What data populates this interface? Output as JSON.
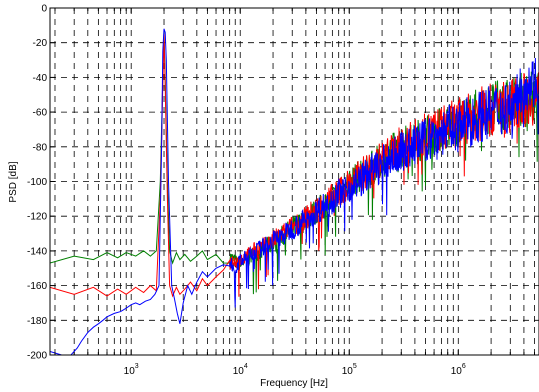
{
  "chart_data": {
    "type": "line",
    "title": "",
    "xlabel": "Frequency [Hz]",
    "ylabel": "PSD [dB]",
    "xscale": "log",
    "xlim": [
      180,
      5500000
    ],
    "ylim": [
      -200,
      0
    ],
    "grid": true,
    "grid_style": "dashed",
    "legend": "none",
    "x_ticks": [
      {
        "value": 1000,
        "mantissa": "10",
        "exp": "3"
      },
      {
        "value": 10000,
        "mantissa": "10",
        "exp": "4"
      },
      {
        "value": 100000,
        "mantissa": "10",
        "exp": "5"
      },
      {
        "value": 1000000,
        "mantissa": "10",
        "exp": "6"
      }
    ],
    "y_ticks": [
      {
        "value": 0,
        "label": "0"
      },
      {
        "value": -20,
        "label": "-20"
      },
      {
        "value": -40,
        "label": "-40"
      },
      {
        "value": -60,
        "label": "-60"
      },
      {
        "value": -80,
        "label": "-80"
      },
      {
        "value": -100,
        "label": "-100"
      },
      {
        "value": -120,
        "label": "-120"
      },
      {
        "value": -140,
        "label": "-140"
      },
      {
        "value": -160,
        "label": "-160"
      },
      {
        "value": -180,
        "label": "-180"
      },
      {
        "value": -200,
        "label": "-200"
      }
    ],
    "series": [
      {
        "color": "#008000",
        "x": [
          180,
          300,
          450,
          600,
          750,
          900,
          1100,
          1300,
          1500,
          1700,
          1850,
          1950,
          2000,
          2050,
          2150,
          2250,
          2400,
          2600,
          2800,
          3100,
          3500,
          4000,
          4500,
          5000,
          6000,
          7000,
          8000,
          9000,
          10000,
          12000,
          14000,
          17000,
          20000,
          25000,
          30000,
          40000,
          50000,
          65000,
          80000,
          100000,
          130000,
          160000,
          200000,
          250000,
          300000,
          400000,
          500000,
          650000,
          800000,
          1000000,
          1300000,
          1600000,
          2000000,
          2500000,
          3000000,
          3500000,
          4000000,
          4500000,
          5000000,
          5500000
        ],
        "y": [
          -147,
          -143,
          -145,
          -141,
          -144,
          -141,
          -143,
          -140,
          -143,
          -140,
          -100,
          -40,
          -14,
          -40,
          -100,
          -140,
          -147,
          -141,
          -145,
          -142,
          -146,
          -143,
          -140,
          -145,
          -142,
          -147,
          -143,
          -146,
          -148,
          -144,
          -141,
          -138,
          -136,
          -131,
          -127,
          -122,
          -117,
          -112,
          -107,
          -101,
          -96,
          -92,
          -88,
          -83,
          -80,
          -77,
          -74,
          -71,
          -68,
          -66,
          -63,
          -60,
          -58,
          -57,
          -56,
          -54,
          -53,
          -52,
          -52,
          -51
        ]
      },
      {
        "color": "#ff0000",
        "x": [
          180,
          300,
          450,
          600,
          750,
          900,
          1100,
          1300,
          1500,
          1700,
          1850,
          1950,
          2000,
          2050,
          2150,
          2250,
          2400,
          2600,
          2800,
          3100,
          3500,
          4000,
          4500,
          5000,
          6000,
          7000,
          8000,
          9000,
          10000,
          12000,
          14000,
          17000,
          20000,
          25000,
          30000,
          40000,
          50000,
          65000,
          80000,
          100000,
          130000,
          160000,
          200000,
          250000,
          300000,
          400000,
          500000,
          650000,
          800000,
          1000000,
          1300000,
          1600000,
          2000000,
          2500000,
          3000000,
          3500000,
          4000000,
          4500000,
          5000000,
          5500000
        ],
        "y": [
          -161,
          -165,
          -161,
          -166,
          -162,
          -165,
          -161,
          -164,
          -160,
          -163,
          -110,
          -45,
          -15,
          -45,
          -110,
          -160,
          -166,
          -161,
          -165,
          -162,
          -158,
          -163,
          -156,
          -160,
          -155,
          -151,
          -148,
          -146,
          -145,
          -142,
          -139,
          -137,
          -134,
          -130,
          -126,
          -121,
          -116,
          -111,
          -106,
          -101,
          -96,
          -91,
          -87,
          -83,
          -79,
          -76,
          -73,
          -70,
          -68,
          -66,
          -63,
          -60,
          -59,
          -57,
          -56,
          -54,
          -53,
          -52,
          -52,
          -51
        ]
      },
      {
        "color": "#0000ff",
        "x": [
          180,
          230,
          280,
          320,
          350,
          400,
          450,
          500,
          550,
          600,
          700,
          800,
          900,
          1000,
          1100,
          1200,
          1350,
          1500,
          1650,
          1800,
          1900,
          1950,
          2000,
          2050,
          2100,
          2200,
          2350,
          2500,
          2650,
          2800,
          3000,
          3300,
          3600,
          4000,
          4500,
          5000,
          6000,
          7000,
          8000,
          9000,
          10000,
          12000,
          14000,
          17000,
          20000,
          25000,
          30000,
          40000,
          50000,
          65000,
          80000,
          100000,
          130000,
          160000,
          200000,
          250000,
          300000,
          400000,
          500000,
          650000,
          800000,
          1000000,
          1300000,
          1600000,
          2000000,
          2500000,
          3000000,
          3500000,
          3700000,
          4000000,
          4500000,
          5000000,
          5500000
        ],
        "y": [
          -198,
          -200,
          -200,
          -196,
          -192,
          -187,
          -184,
          -182,
          -180,
          -178,
          -176,
          -175,
          -173,
          -171,
          -170,
          -171,
          -169,
          -168,
          -165,
          -160,
          -80,
          -25,
          -12,
          -14,
          -30,
          -100,
          -160,
          -168,
          -176,
          -182,
          -170,
          -160,
          -165,
          -158,
          -152,
          -155,
          -150,
          -148,
          -146,
          -150,
          -146,
          -143,
          -140,
          -137,
          -134,
          -131,
          -127,
          -122,
          -117,
          -112,
          -107,
          -103,
          -99,
          -94,
          -90,
          -86,
          -83,
          -79,
          -76,
          -73,
          -70,
          -68,
          -65,
          -62,
          -60,
          -58,
          -56,
          -54,
          -45,
          -43,
          -43,
          -42,
          -42
        ]
      }
    ]
  }
}
